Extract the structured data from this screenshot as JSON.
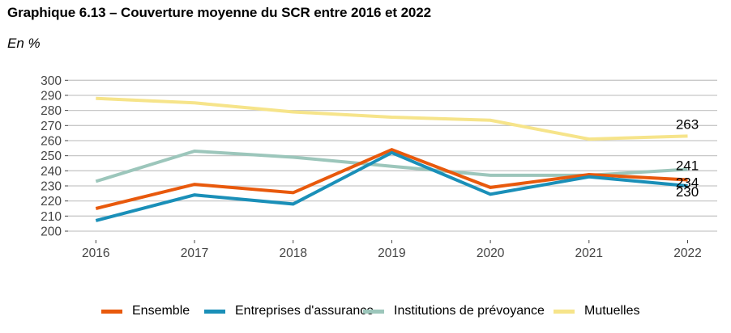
{
  "header": {
    "title": "Graphique 6.13 – Couverture moyenne du SCR entre 2016 et 2022",
    "unit": "En %"
  },
  "chart_data": {
    "type": "line",
    "title": "Graphique 6.13 – Couverture moyenne du SCR entre 2016 et 2022",
    "subtitle": "En %",
    "xlabel": "",
    "ylabel": "",
    "x": [
      "2016",
      "2017",
      "2018",
      "2019",
      "2020",
      "2021",
      "2022"
    ],
    "ylim": [
      200,
      300
    ],
    "yticks": [
      200,
      210,
      220,
      230,
      240,
      250,
      260,
      270,
      280,
      290,
      300
    ],
    "grid": "horizontal",
    "legend_position": "bottom",
    "series": [
      {
        "name": "Ensemble",
        "color": "#E8590C",
        "values": [
          215,
          231,
          225.5,
          254,
          229,
          237.5,
          234
        ],
        "end_label": "234"
      },
      {
        "name": "Entreprises d'assurance",
        "color": "#1A8FB8",
        "values": [
          207,
          224,
          218,
          252,
          224.5,
          236,
          230
        ],
        "end_label": "230"
      },
      {
        "name": "Institutions de prévoyance",
        "color": "#9CC6BB",
        "values": [
          233,
          253,
          249,
          243,
          237,
          237,
          241
        ],
        "end_label": "241"
      },
      {
        "name": "Mutuelles",
        "color": "#F6E48A",
        "values": [
          288,
          285,
          279,
          275.5,
          273.5,
          261,
          263
        ],
        "end_label": "263"
      }
    ]
  }
}
